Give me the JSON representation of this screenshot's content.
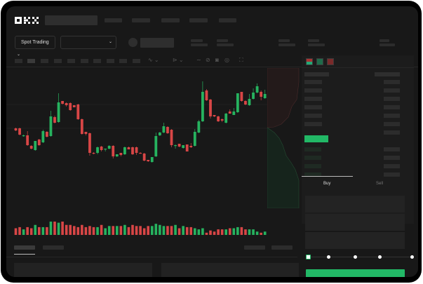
{
  "header": {
    "logo": "OKX"
  },
  "toolbar": {
    "market_select": "Spot Trading"
  },
  "order_form": {
    "buy_tab": "Buy",
    "sell_tab": "Sell",
    "slider_percent": 0
  },
  "colors": {
    "up": "#26b35f",
    "down": "#d84646",
    "background": "#181818",
    "accent": "#22b866"
  },
  "chart_data": {
    "type": "candlestick",
    "candles": [
      [
        58,
        55,
        59,
        54
      ],
      [
        58,
        49,
        59,
        48
      ],
      [
        47,
        48,
        49,
        46
      ],
      [
        48,
        34,
        54,
        33
      ],
      [
        33,
        29,
        34,
        28
      ],
      [
        27,
        40,
        40,
        26
      ],
      [
        42,
        34,
        43,
        33
      ],
      [
        38,
        54,
        56,
        37
      ],
      [
        53,
        46,
        54,
        45
      ],
      [
        47,
        75,
        83,
        46
      ],
      [
        74,
        66,
        76,
        65
      ],
      [
        67,
        95,
        108,
        66
      ],
      [
        97,
        93,
        97,
        92
      ],
      [
        94,
        91,
        95,
        89
      ],
      [
        94,
        84,
        95,
        83
      ],
      [
        91,
        88,
        91,
        88
      ],
      [
        92,
        71,
        93,
        70
      ],
      [
        71,
        50,
        72,
        49
      ],
      [
        53,
        50,
        53,
        48
      ],
      [
        51,
        23,
        52,
        19
      ],
      [
        23,
        22,
        24,
        21
      ],
      [
        23,
        31,
        32,
        21
      ],
      [
        32,
        27,
        33,
        25
      ],
      [
        28,
        29,
        29,
        25
      ],
      [
        29,
        33,
        34,
        28
      ],
      [
        33,
        18,
        34,
        15
      ],
      [
        18,
        21,
        21,
        17
      ],
      [
        23,
        20,
        23,
        18
      ],
      [
        21,
        31,
        32,
        20
      ],
      [
        31,
        28,
        32,
        28
      ],
      [
        31,
        21,
        32,
        20
      ],
      [
        31,
        23,
        32,
        20
      ],
      [
        23,
        22,
        24,
        22
      ],
      [
        22,
        12,
        23,
        11
      ],
      [
        13,
        11,
        13,
        10
      ],
      [
        10,
        17,
        17,
        9
      ],
      [
        18,
        47,
        52,
        17
      ],
      [
        48,
        52,
        53,
        47
      ],
      [
        52,
        61,
        66,
        51
      ],
      [
        60,
        51,
        61,
        50
      ],
      [
        56,
        34,
        57,
        31
      ],
      [
        33,
        34,
        35,
        29
      ],
      [
        36,
        32,
        36,
        31
      ],
      [
        30,
        34,
        34,
        29
      ],
      [
        35,
        25,
        35,
        25
      ],
      [
        33,
        31,
        37,
        30
      ],
      [
        33,
        53,
        57,
        32
      ],
      [
        52,
        68,
        70,
        51
      ],
      [
        68,
        110,
        125,
        67
      ],
      [
        112,
        98,
        114,
        97
      ],
      [
        99,
        75,
        100,
        72
      ],
      [
        77,
        75,
        77,
        74
      ],
      [
        75,
        68,
        76,
        67
      ],
      [
        71,
        69,
        72,
        67
      ],
      [
        66,
        79,
        80,
        65
      ],
      [
        82,
        79,
        85,
        79
      ],
      [
        77,
        82,
        87,
        77
      ],
      [
        81,
        108,
        108,
        80
      ],
      [
        110,
        97,
        110,
        96
      ],
      [
        97,
        92,
        98,
        91
      ],
      [
        91,
        100,
        107,
        90
      ],
      [
        100,
        109,
        115,
        99
      ],
      [
        109,
        118,
        122,
        108
      ],
      [
        110,
        103,
        112,
        98
      ],
      [
        101,
        107,
        113,
        100
      ]
    ],
    "candle_fields": [
      "open",
      "close",
      "high",
      "low"
    ],
    "volumes": [
      6,
      7,
      5,
      7,
      6,
      9,
      7,
      7,
      7,
      12,
      12,
      11,
      12,
      9,
      9,
      8,
      7,
      9,
      7,
      8,
      7,
      7,
      9,
      6,
      8,
      8,
      8,
      8,
      9,
      7,
      9,
      8,
      8,
      6,
      8,
      8,
      10,
      9,
      8,
      8,
      8,
      9,
      6,
      8,
      7,
      7,
      6,
      5,
      6,
      2,
      4,
      3,
      5,
      5,
      5,
      6,
      6,
      7,
      7,
      5,
      5,
      5,
      3,
      2,
      3
    ],
    "price_levels": [
      92,
      58
    ]
  }
}
